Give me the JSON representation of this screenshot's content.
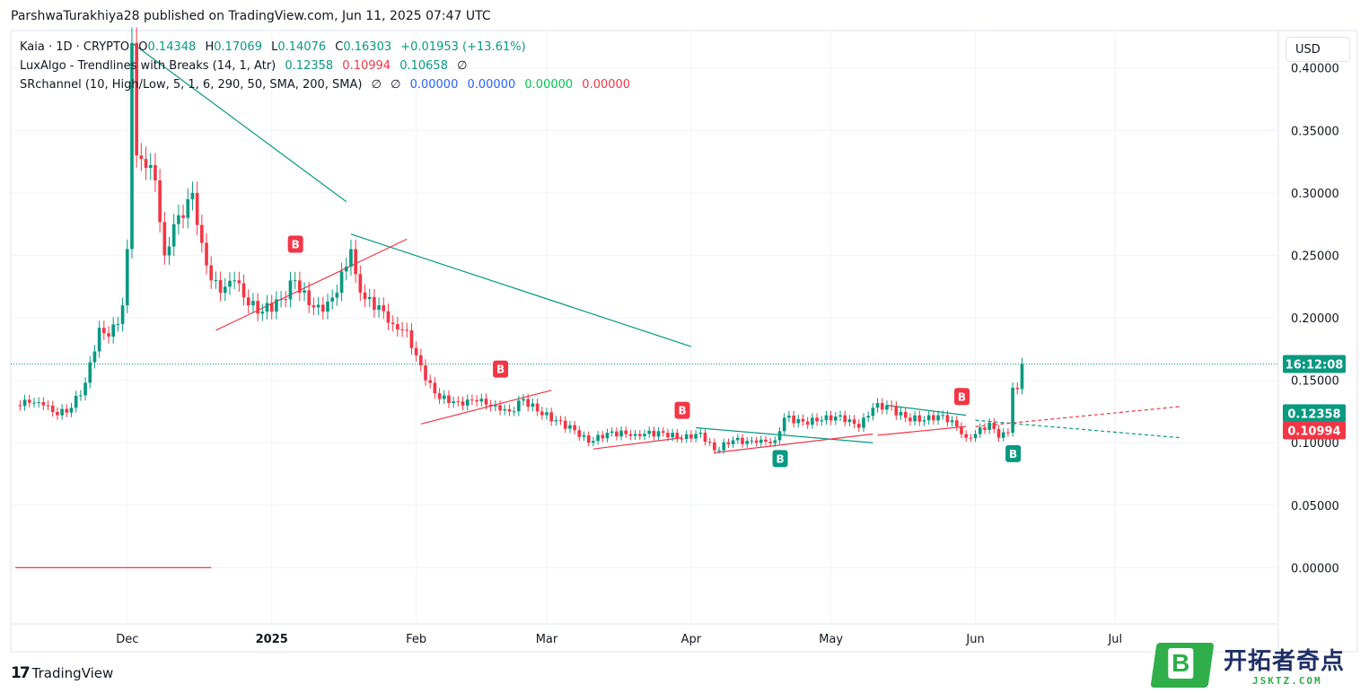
{
  "header": "ParshwaTurakhiya28 published on TradingView.com, Jun 11, 2025 07:47 UTC",
  "legend": {
    "symbol": "Kaia · 1D · CRYPTO",
    "open_label": "O",
    "open": "0.14348",
    "high_label": "H",
    "high": "0.17069",
    "low_label": "L",
    "low": "0.14076",
    "close_label": "C",
    "close": "0.16303",
    "change": "+0.01953 (+13.61%)",
    "ind1_name": "LuxAlgo - Trendlines with Breaks (14, 1, Atr)",
    "ind1_v1": "0.12358",
    "ind1_v2": "0.10994",
    "ind1_v3": "0.10658",
    "ind1_v4": "∅",
    "ind2_name": "SRchannel (10, High/Low, 5, 1, 6, 290, 50, SMA, 200, SMA)",
    "ind2_v1": "∅",
    "ind2_v2": "∅",
    "ind2_v3": "0.00000",
    "ind2_v4": "0.00000",
    "ind2_v5": "0.00000",
    "ind2_v6": "0.00000"
  },
  "currency": "USD",
  "branding": {
    "tv": "TradingView",
    "watermark_cn": "开拓者奇点",
    "watermark_en": "JSKTZ.COM",
    "watermark_letter": "B"
  },
  "colors": {
    "up": "#089981",
    "down": "#f23645",
    "blue": "#2962ff"
  },
  "chart_data": {
    "type": "candlestick",
    "ylim": [
      -0.045,
      0.43
    ],
    "y_ticks": [
      "0.40000",
      "0.35000",
      "0.30000",
      "0.25000",
      "0.20000",
      "0.15000",
      "0.10000",
      "0.05000",
      "0.00000"
    ],
    "y_tick_values": [
      0.4,
      0.35,
      0.3,
      0.25,
      0.2,
      0.15,
      0.1,
      0.05,
      0.0
    ],
    "x_ticks": [
      {
        "label": "Dec",
        "date": "2024-12-01"
      },
      {
        "label": "2025",
        "date": "2025-01-01",
        "bold": true
      },
      {
        "label": "Feb",
        "date": "2025-02-01"
      },
      {
        "label": "Mar",
        "date": "2025-03-01"
      },
      {
        "label": "Apr",
        "date": "2025-04-01"
      },
      {
        "label": "May",
        "date": "2025-05-01"
      },
      {
        "label": "Jun",
        "date": "2025-06-01"
      },
      {
        "label": "Jul",
        "date": "2025-07-01"
      }
    ],
    "price_anchors": [
      [
        "2024-11-07",
        0.13
      ],
      [
        "2024-11-10",
        0.132
      ],
      [
        "2024-11-13",
        0.13
      ],
      [
        "2024-11-16",
        0.122
      ],
      [
        "2024-11-19",
        0.128
      ],
      [
        "2024-11-22",
        0.148
      ],
      [
        "2024-11-25",
        0.192
      ],
      [
        "2024-11-27",
        0.185
      ],
      [
        "2024-11-29",
        0.195
      ],
      [
        "2024-11-30",
        0.21
      ],
      [
        "2024-12-01",
        0.255
      ],
      [
        "2024-12-02",
        0.42
      ],
      [
        "2024-12-03",
        0.33
      ],
      [
        "2024-12-05",
        0.32
      ],
      [
        "2024-12-07",
        0.31
      ],
      [
        "2024-12-09",
        0.25
      ],
      [
        "2024-12-11",
        0.275
      ],
      [
        "2024-12-13",
        0.28
      ],
      [
        "2024-12-15",
        0.3
      ],
      [
        "2024-12-17",
        0.26
      ],
      [
        "2024-12-19",
        0.23
      ],
      [
        "2024-12-21",
        0.22
      ],
      [
        "2024-12-24",
        0.23
      ],
      [
        "2024-12-27",
        0.21
      ],
      [
        "2024-12-30",
        0.205
      ],
      [
        "2025-01-03",
        0.215
      ],
      [
        "2025-01-06",
        0.23
      ],
      [
        "2025-01-09",
        0.21
      ],
      [
        "2025-01-12",
        0.205
      ],
      [
        "2025-01-15",
        0.22
      ],
      [
        "2025-01-18",
        0.255
      ],
      [
        "2025-01-19",
        0.235
      ],
      [
        "2025-01-21",
        0.215
      ],
      [
        "2025-01-24",
        0.21
      ],
      [
        "2025-01-27",
        0.195
      ],
      [
        "2025-01-30",
        0.19
      ],
      [
        "2025-02-01",
        0.17
      ],
      [
        "2025-02-03",
        0.15
      ],
      [
        "2025-02-06",
        0.135
      ],
      [
        "2025-02-10",
        0.133
      ],
      [
        "2025-02-14",
        0.133
      ],
      [
        "2025-02-18",
        0.13
      ],
      [
        "2025-02-21",
        0.125
      ],
      [
        "2025-02-24",
        0.135
      ],
      [
        "2025-02-27",
        0.125
      ],
      [
        "2025-03-03",
        0.118
      ],
      [
        "2025-03-07",
        0.11
      ],
      [
        "2025-03-10",
        0.1
      ],
      [
        "2025-03-14",
        0.108
      ],
      [
        "2025-03-20",
        0.107
      ],
      [
        "2025-03-26",
        0.108
      ],
      [
        "2025-03-30",
        0.103
      ],
      [
        "2025-04-03",
        0.108
      ],
      [
        "2025-04-06",
        0.094
      ],
      [
        "2025-04-10",
        0.102
      ],
      [
        "2025-04-15",
        0.1
      ],
      [
        "2025-04-19",
        0.102
      ],
      [
        "2025-04-21",
        0.12
      ],
      [
        "2025-04-25",
        0.117
      ],
      [
        "2025-04-29",
        0.118
      ],
      [
        "2025-05-03",
        0.122
      ],
      [
        "2025-05-07",
        0.112
      ],
      [
        "2025-05-10",
        0.128
      ],
      [
        "2025-05-13",
        0.13
      ],
      [
        "2025-05-17",
        0.12
      ],
      [
        "2025-05-21",
        0.118
      ],
      [
        "2025-05-24",
        0.122
      ],
      [
        "2025-05-27",
        0.118
      ],
      [
        "2025-05-30",
        0.104
      ],
      [
        "2025-06-01",
        0.107
      ],
      [
        "2025-06-04",
        0.116
      ],
      [
        "2025-06-06",
        0.104
      ],
      [
        "2025-06-08",
        0.108
      ],
      [
        "2025-06-09",
        0.144
      ],
      [
        "2025-06-10",
        0.143
      ],
      [
        "2025-06-11",
        0.163
      ]
    ],
    "trendlines_down": [
      [
        [
          "2024-12-02",
          0.42
        ],
        [
          "2025-01-17",
          0.293
        ]
      ],
      [
        [
          "2025-01-18",
          0.267
        ],
        [
          "2025-04-01",
          0.177
        ]
      ],
      [
        [
          "2025-04-02",
          0.112
        ],
        [
          "2025-05-10",
          0.1
        ]
      ],
      [
        [
          "2025-05-13",
          0.13
        ],
        [
          "2025-05-30",
          0.122
        ]
      ],
      [
        [
          "2025-06-01",
          0.118
        ],
        [
          "2025-07-15",
          0.104
        ]
      ]
    ],
    "trendlines_up": [
      [
        [
          "2024-12-20",
          0.19
        ],
        [
          "2025-01-30",
          0.263
        ]
      ],
      [
        [
          "2025-02-02",
          0.115
        ],
        [
          "2025-03-02",
          0.142
        ]
      ],
      [
        [
          "2025-03-11",
          0.095
        ],
        [
          "2025-03-30",
          0.104
        ]
      ],
      [
        [
          "2025-04-06",
          0.092
        ],
        [
          "2025-05-10",
          0.107
        ]
      ],
      [
        [
          "2025-05-11",
          0.106
        ],
        [
          "2025-05-30",
          0.113
        ]
      ],
      [
        [
          "2025-06-01",
          0.113
        ],
        [
          "2025-07-15",
          0.129
        ]
      ]
    ],
    "sr_line": [
      [
        "2024-11-07",
        0.0
      ],
      [
        "2024-12-19",
        0.0
      ]
    ],
    "signals": [
      {
        "label": "B",
        "date": "2025-01-06",
        "price": 0.25,
        "color": "down",
        "pos": "above"
      },
      {
        "label": "B",
        "date": "2025-02-19",
        "price": 0.15,
        "color": "down",
        "pos": "above"
      },
      {
        "label": "B",
        "date": "2025-03-30",
        "price": 0.117,
        "color": "down",
        "pos": "above"
      },
      {
        "label": "B",
        "date": "2025-05-29",
        "price": 0.128,
        "color": "down",
        "pos": "above"
      },
      {
        "label": "B",
        "date": "2025-04-20",
        "price": 0.097,
        "color": "up",
        "pos": "below"
      },
      {
        "label": "B",
        "date": "2025-06-09",
        "price": 0.101,
        "color": "up",
        "pos": "below"
      }
    ],
    "last_price": 0.16303,
    "price_labels": [
      {
        "text": "16:12:08",
        "value": 0.16303,
        "color": "up"
      },
      {
        "text": "0.12358",
        "value": 0.12358,
        "color": "up"
      },
      {
        "text": "0.10994",
        "value": 0.10994,
        "color": "down"
      }
    ]
  }
}
